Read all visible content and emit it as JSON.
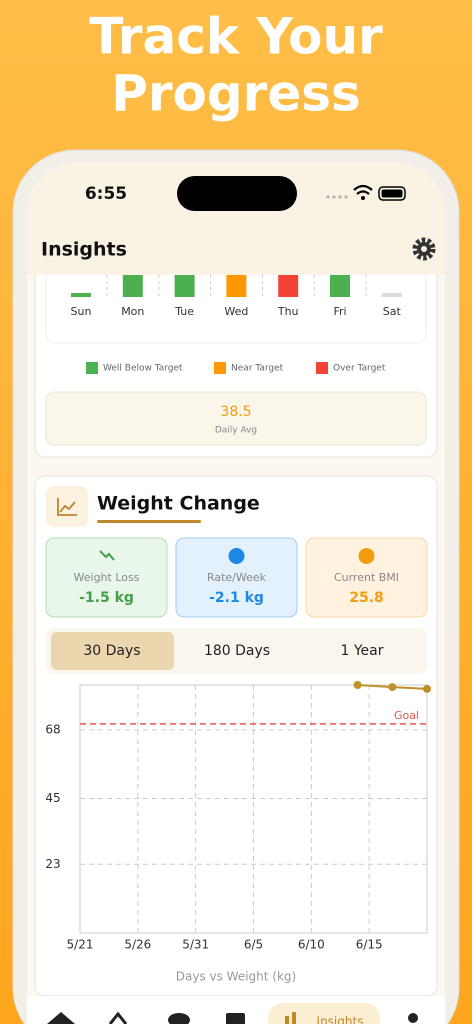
{
  "header": {
    "title_lines": [
      "Track Your",
      "Progress"
    ]
  },
  "status_bar": {
    "time": "6:55"
  },
  "app_bar": {
    "title": "Insights"
  },
  "weekly": {
    "days": [
      {
        "label": "Sun",
        "color": "#4caf50"
      },
      {
        "label": "Mon",
        "color": "#4caf50"
      },
      {
        "label": "Tue",
        "color": "#4caf50"
      },
      {
        "label": "Wed",
        "color": "#ff9800"
      },
      {
        "label": "Thu",
        "color": "#f44336"
      },
      {
        "label": "Fri",
        "color": "#4caf50"
      },
      {
        "label": "Sat",
        "color": "#dddddd"
      }
    ],
    "legend": [
      {
        "label": "Well Below Target",
        "color": "#4caf50"
      },
      {
        "label": "Near Target",
        "color": "#ff9800"
      },
      {
        "label": "Over Target",
        "color": "#f44336"
      }
    ],
    "daily_avg": {
      "value": "38.5",
      "label": "Daily Avg"
    }
  },
  "weight_card": {
    "title": "Weight Change",
    "stats": [
      {
        "label": "Weight Loss",
        "value": "-1.5 kg",
        "color": "#43a047"
      },
      {
        "label": "Rate/Week",
        "value": "-2.1 kg",
        "color": "#1e88e5"
      },
      {
        "label": "Current BMI",
        "value": "25.8",
        "color": "#f39c12"
      }
    ],
    "tabs": [
      "30 Days",
      "180 Days",
      "1 Year"
    ],
    "selected_tab": 0
  },
  "chart_data": {
    "type": "line",
    "x_label": "Days vs Weight (kg)",
    "x": [
      "6/14",
      "6/17",
      "6/20"
    ],
    "series": [
      {
        "name": "Weight",
        "color": "#c0902a",
        "values": [
          83,
          82.3,
          81.7
        ]
      }
    ],
    "xlim": [
      "5/21",
      "6/20"
    ],
    "xticks": [
      "5/21",
      "5/26",
      "5/31",
      "6/5",
      "6/10",
      "6/15"
    ],
    "ylim": [
      0,
      83
    ],
    "yticks": [
      23,
      45,
      68
    ],
    "grid": true,
    "goal": {
      "label": "Goal",
      "value": 70,
      "color": "#e05555"
    }
  },
  "nav": {
    "active_label": "Insights"
  }
}
